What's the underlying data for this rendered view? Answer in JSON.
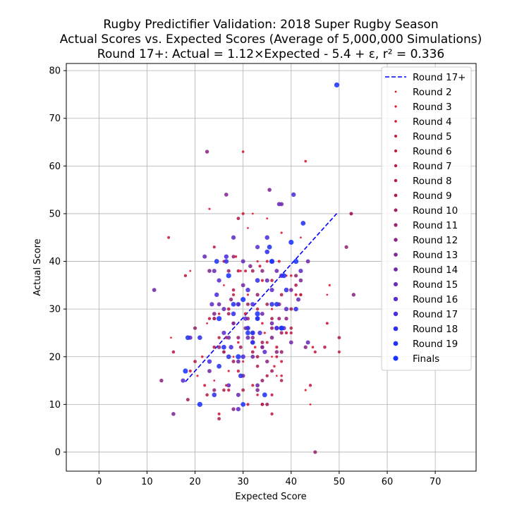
{
  "chart_data": {
    "type": "scatter",
    "title": [
      "Rugby Predictifier Validation: 2018 Super Rugby Season",
      "Actual Scores vs. Expected Scores (Average of 5,000,000 Simulations)",
      "Round 17+: Actual = 1.12×Expected - 5.4 + ε, r² = 0.336"
    ],
    "xlabel": "Expected Score",
    "ylabel": "Actual Score",
    "xlim": [
      -6.8,
      78.5
    ],
    "ylim": [
      -4,
      81.5
    ],
    "xticks": [
      0,
      10,
      20,
      30,
      40,
      50,
      60,
      70
    ],
    "yticks": [
      0,
      10,
      20,
      30,
      40,
      50,
      60,
      70,
      80
    ],
    "grid": true,
    "legend_position": "top-right",
    "fit_line": {
      "name": "Round 17+",
      "color": "#0000ff",
      "x": [
        18,
        49.5
      ],
      "y": [
        14.76,
        50.04
      ]
    },
    "series": [
      {
        "name": "Round 2",
        "color": "#e8102a",
        "size": 1.4,
        "points": [
          [
            22.5,
            27
          ],
          [
            31,
            47
          ],
          [
            35,
            49
          ],
          [
            42,
            45
          ],
          [
            44,
            10
          ],
          [
            15,
            24
          ],
          [
            26,
            35
          ],
          [
            47.5,
            33
          ],
          [
            32,
            50
          ],
          [
            36,
            20
          ],
          [
            28,
            20
          ],
          [
            24,
            15
          ],
          [
            19,
            38
          ],
          [
            37,
            16
          ]
        ]
      },
      {
        "name": "Round 3",
        "color": "#e0122f",
        "size": 1.6,
        "points": [
          [
            23,
            51
          ],
          [
            48,
            35
          ],
          [
            29.5,
            38
          ],
          [
            33,
            40
          ],
          [
            39,
            37
          ],
          [
            26,
            21
          ],
          [
            30,
            19
          ],
          [
            36,
            30
          ],
          [
            43,
            13
          ],
          [
            20.5,
            16
          ],
          [
            34.5,
            25
          ],
          [
            27,
            17
          ],
          [
            31,
            33
          ],
          [
            38,
            46
          ]
        ]
      },
      {
        "name": "Round 4",
        "color": "#d81434",
        "size": 1.8,
        "points": [
          [
            43,
            61
          ],
          [
            30,
            63
          ],
          [
            44.5,
            22
          ],
          [
            25,
            29
          ],
          [
            34,
            27
          ],
          [
            28.5,
            41
          ],
          [
            21.5,
            20
          ],
          [
            38,
            16
          ],
          [
            32.5,
            22
          ],
          [
            36.5,
            18
          ],
          [
            29,
            23
          ],
          [
            40,
            37
          ],
          [
            26.5,
            14
          ],
          [
            33,
            12
          ]
        ]
      },
      {
        "name": "Round 5",
        "color": "#d01639",
        "size": 2.0,
        "points": [
          [
            14.5,
            45
          ],
          [
            35,
            40
          ],
          [
            52.5,
            50
          ],
          [
            47.5,
            27
          ],
          [
            25,
            8
          ],
          [
            30.5,
            38
          ],
          [
            22,
            14
          ],
          [
            41,
            33
          ],
          [
            38,
            19
          ],
          [
            28,
            27
          ],
          [
            35,
            23
          ],
          [
            42,
            33
          ],
          [
            26,
            40
          ],
          [
            37,
            20
          ]
        ]
      },
      {
        "name": "Round 6",
        "color": "#c8183e",
        "size": 2.1,
        "points": [
          [
            30,
            50
          ],
          [
            19,
            17
          ],
          [
            45,
            21
          ],
          [
            34,
            36
          ],
          [
            50,
            21
          ],
          [
            24,
            43
          ],
          [
            36,
            12
          ],
          [
            31,
            10
          ],
          [
            26.5,
            24
          ],
          [
            40,
            25
          ],
          [
            28,
            33
          ],
          [
            32,
            14
          ],
          [
            33.5,
            39
          ],
          [
            37.5,
            40
          ]
        ]
      },
      {
        "name": "Round 7",
        "color": "#c01a43",
        "size": 2.2,
        "points": [
          [
            18,
            37
          ],
          [
            33,
            30
          ],
          [
            42,
            33
          ],
          [
            27,
            13
          ],
          [
            25,
            24
          ],
          [
            44,
            14
          ],
          [
            36,
            8
          ],
          [
            29,
            17
          ],
          [
            39,
            25
          ],
          [
            34,
            10
          ],
          [
            23,
            28
          ],
          [
            31,
            26
          ],
          [
            37,
            22
          ],
          [
            35,
            16
          ]
        ]
      },
      {
        "name": "Round 8",
        "color": "#b81c48",
        "size": 2.3,
        "points": [
          [
            28,
            34
          ],
          [
            40,
            26
          ],
          [
            47,
            22
          ],
          [
            15.5,
            21
          ],
          [
            22.5,
            12
          ],
          [
            36,
            36
          ],
          [
            32,
            25
          ],
          [
            30.5,
            29
          ],
          [
            26,
            13
          ],
          [
            34,
            22
          ],
          [
            38,
            15
          ],
          [
            29,
            38
          ],
          [
            24,
            28
          ],
          [
            33,
            18
          ]
        ]
      },
      {
        "name": "Round 9",
        "color": "#b01e4d",
        "size": 2.4,
        "points": [
          [
            29,
            49
          ],
          [
            25,
            7
          ],
          [
            50,
            24
          ],
          [
            34,
            10
          ],
          [
            20,
            19
          ],
          [
            38,
            33
          ],
          [
            27,
            30
          ],
          [
            32,
            21
          ],
          [
            36,
            28
          ],
          [
            30,
            13
          ],
          [
            41,
            35
          ],
          [
            24,
            22
          ],
          [
            33,
            20
          ],
          [
            35,
            31
          ]
        ]
      },
      {
        "name": "Round 10",
        "color": "#a42060",
        "size": 2.5,
        "points": [
          [
            52.5,
            50
          ],
          [
            18.5,
            11
          ],
          [
            32,
            38
          ],
          [
            27,
            29
          ],
          [
            35,
            10
          ],
          [
            24,
            28
          ],
          [
            29.5,
            22
          ],
          [
            38,
            25
          ],
          [
            31,
            31
          ],
          [
            36,
            17
          ],
          [
            26,
            21
          ],
          [
            34,
            23
          ],
          [
            40,
            30
          ],
          [
            28,
            19
          ]
        ]
      },
      {
        "name": "Round 11",
        "color": "#982272",
        "size": 2.6,
        "points": [
          [
            51.5,
            43
          ],
          [
            45,
            0
          ],
          [
            28,
            41
          ],
          [
            33,
            33
          ],
          [
            20,
            26
          ],
          [
            38,
            21
          ],
          [
            24,
            13
          ],
          [
            31,
            28
          ],
          [
            36,
            26
          ],
          [
            29,
            24
          ],
          [
            41,
            37
          ],
          [
            27,
            38
          ],
          [
            34,
            15
          ],
          [
            37.5,
            28
          ]
        ]
      },
      {
        "name": "Round 12",
        "color": "#8c2484",
        "size": 2.7,
        "points": [
          [
            22.5,
            63
          ],
          [
            53,
            33
          ],
          [
            13,
            15
          ],
          [
            37,
            21
          ],
          [
            30.5,
            26
          ],
          [
            25,
            22
          ],
          [
            34,
            38
          ],
          [
            28,
            9
          ],
          [
            39,
            28
          ],
          [
            32,
            24
          ],
          [
            27.5,
            32
          ],
          [
            35,
            19
          ],
          [
            43,
            22
          ],
          [
            29,
            31
          ]
        ]
      },
      {
        "name": "Round 13",
        "color": "#802696",
        "size": 2.8,
        "points": [
          [
            35.5,
            55
          ],
          [
            15.5,
            8
          ],
          [
            42,
            36
          ],
          [
            26.5,
            54
          ],
          [
            31.5,
            39
          ],
          [
            24,
            29
          ],
          [
            33,
            13
          ],
          [
            37.5,
            31
          ],
          [
            28,
            27
          ],
          [
            36,
            24
          ],
          [
            23,
            38
          ],
          [
            30,
            16
          ],
          [
            40,
            34
          ],
          [
            34,
            22
          ]
        ]
      },
      {
        "name": "Round 14",
        "color": "#7428a8",
        "size": 2.9,
        "points": [
          [
            38,
            52
          ],
          [
            43.5,
            40
          ],
          [
            11.5,
            34
          ],
          [
            23,
            17
          ],
          [
            32,
            20
          ],
          [
            27,
            24
          ],
          [
            36,
            27
          ],
          [
            29,
            19
          ],
          [
            34,
            29
          ],
          [
            30,
            35
          ],
          [
            40,
            23
          ],
          [
            25,
            31
          ],
          [
            37,
            38
          ],
          [
            33,
            14
          ]
        ]
      },
      {
        "name": "Round 15",
        "color": "#682aba",
        "size": 3.0,
        "points": [
          [
            37.5,
            52
          ],
          [
            19,
            24
          ],
          [
            43.5,
            23
          ],
          [
            30,
            40
          ],
          [
            24,
            38
          ],
          [
            33,
            28
          ],
          [
            27,
            14
          ],
          [
            35,
            36
          ],
          [
            31,
            24
          ],
          [
            38.5,
            26
          ],
          [
            26,
            30
          ],
          [
            41.5,
            32
          ],
          [
            29,
            12
          ],
          [
            22,
            41
          ]
        ]
      },
      {
        "name": "Round 16",
        "color": "#5c2ccc",
        "size": 3.1,
        "points": [
          [
            33,
            43
          ],
          [
            23.5,
            31
          ],
          [
            17.5,
            15
          ],
          [
            36,
            34
          ],
          [
            28,
            45
          ],
          [
            30.5,
            28
          ],
          [
            26,
            25
          ],
          [
            39,
            30
          ],
          [
            32,
            23
          ],
          [
            34.5,
            21
          ],
          [
            25,
            36
          ],
          [
            37,
            26
          ],
          [
            29,
            9
          ],
          [
            42,
            38
          ]
        ]
      },
      {
        "name": "Round 17",
        "color": "#4c2ede",
        "size": 3.2,
        "points": [
          [
            40.5,
            54
          ],
          [
            35,
            45
          ],
          [
            23,
            19
          ],
          [
            29,
            31
          ],
          [
            36,
            40
          ],
          [
            26.5,
            41
          ],
          [
            31,
            34
          ],
          [
            33.5,
            25
          ],
          [
            38,
            37
          ],
          [
            27.5,
            22
          ],
          [
            30,
            20
          ],
          [
            24.5,
            33
          ],
          [
            37,
            26
          ],
          [
            32,
            31
          ]
        ]
      },
      {
        "name": "Round 18",
        "color": "#3030ea",
        "size": 3.3,
        "points": [
          [
            26.5,
            40
          ],
          [
            31,
            26
          ],
          [
            35,
            42
          ],
          [
            24,
            12
          ],
          [
            39,
            34
          ],
          [
            28,
            29
          ],
          [
            32,
            23
          ],
          [
            36,
            31
          ],
          [
            21,
            24
          ],
          [
            38,
            26
          ],
          [
            27,
            20
          ],
          [
            33,
            36
          ],
          [
            29.5,
            16
          ],
          [
            41,
            30
          ]
        ]
      },
      {
        "name": "Round 19",
        "color": "#2233f2",
        "size": 3.4,
        "points": [
          [
            42.5,
            48
          ],
          [
            28,
            31
          ],
          [
            34.5,
            12
          ],
          [
            25,
            18
          ],
          [
            31,
            25
          ],
          [
            37,
            31
          ],
          [
            18.5,
            24
          ],
          [
            30,
            10
          ],
          [
            38.5,
            37
          ],
          [
            33,
            28
          ],
          [
            26,
            22
          ],
          [
            35.5,
            43
          ],
          [
            24.5,
            40
          ],
          [
            32,
            25
          ]
        ]
      },
      {
        "name": "Finals",
        "color": "#1a35ff",
        "size": 3.6,
        "points": [
          [
            49.5,
            77
          ],
          [
            40,
            44
          ],
          [
            21,
            10
          ],
          [
            18,
            17
          ],
          [
            36,
            40
          ],
          [
            30,
            32
          ],
          [
            27,
            37
          ],
          [
            33,
            29
          ],
          [
            38,
            26
          ],
          [
            29,
            20
          ],
          [
            41,
            40
          ],
          [
            25,
            28
          ]
        ]
      }
    ]
  }
}
